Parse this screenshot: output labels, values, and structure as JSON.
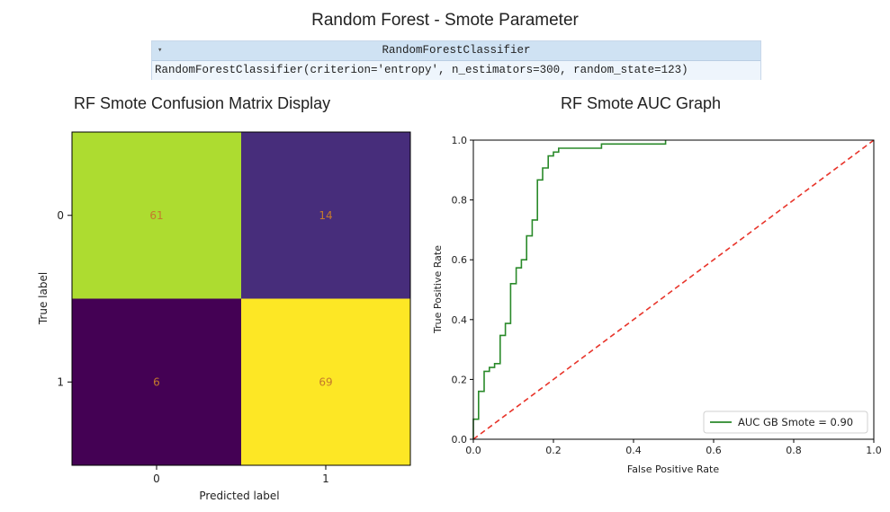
{
  "page": {
    "title": "Random Forest - Smote Parameter"
  },
  "model_box": {
    "caret": "▾",
    "header": "RandomForestClassifier",
    "repr": "RandomForestClassifier(criterion='entropy', n_estimators=300, random_state=123)"
  },
  "chart_data": [
    {
      "type": "heatmap",
      "title": "RF Smote Confusion Matrix Display",
      "xlabel": "Predicted label",
      "ylabel": "True label",
      "x_ticks": [
        "0",
        "1"
      ],
      "y_ticks": [
        "0",
        "1"
      ],
      "matrix": [
        [
          61,
          14
        ],
        [
          6,
          69
        ]
      ],
      "cell_colors": [
        [
          "#addc30",
          "#472d7b"
        ],
        [
          "#440154",
          "#fde725"
        ]
      ],
      "label_color": "#c47a2c",
      "colormap": "viridis"
    },
    {
      "type": "line",
      "title": "RF Smote AUC Graph",
      "xlabel": "False Positive Rate",
      "ylabel": "True Positive Rate",
      "xlim": [
        0.0,
        1.0
      ],
      "ylim": [
        0.0,
        1.0
      ],
      "x_ticks": [
        "0.0",
        "0.2",
        "0.4",
        "0.6",
        "0.8",
        "1.0"
      ],
      "y_ticks": [
        "0.0",
        "0.2",
        "0.4",
        "0.6",
        "0.8",
        "1.0"
      ],
      "legend_position": "bottom-right",
      "series": [
        {
          "name": "AUC GB Smote = 0.90",
          "color": "#2a8a2a",
          "style": "solid",
          "x": [
            0.0,
            0.0,
            0.013,
            0.013,
            0.027,
            0.027,
            0.04,
            0.04,
            0.053,
            0.053,
            0.067,
            0.067,
            0.08,
            0.08,
            0.093,
            0.093,
            0.107,
            0.107,
            0.12,
            0.12,
            0.133,
            0.133,
            0.147,
            0.147,
            0.16,
            0.16,
            0.173,
            0.173,
            0.187,
            0.187,
            0.2,
            0.2,
            0.213,
            0.213,
            0.227,
            0.227,
            0.32,
            0.32,
            0.48,
            0.48
          ],
          "y": [
            0.0,
            0.067,
            0.067,
            0.16,
            0.16,
            0.227,
            0.227,
            0.24,
            0.24,
            0.253,
            0.253,
            0.347,
            0.347,
            0.387,
            0.387,
            0.52,
            0.52,
            0.573,
            0.573,
            0.6,
            0.6,
            0.68,
            0.68,
            0.733,
            0.733,
            0.867,
            0.867,
            0.907,
            0.907,
            0.947,
            0.947,
            0.96,
            0.96,
            0.973,
            0.973,
            0.973,
            0.973,
            0.987,
            0.987,
            1.0
          ]
        },
        {
          "name": "",
          "color": "#e8342a",
          "style": "dashed",
          "x": [
            0.0,
            1.0
          ],
          "y": [
            0.0,
            1.0
          ]
        }
      ]
    }
  ]
}
